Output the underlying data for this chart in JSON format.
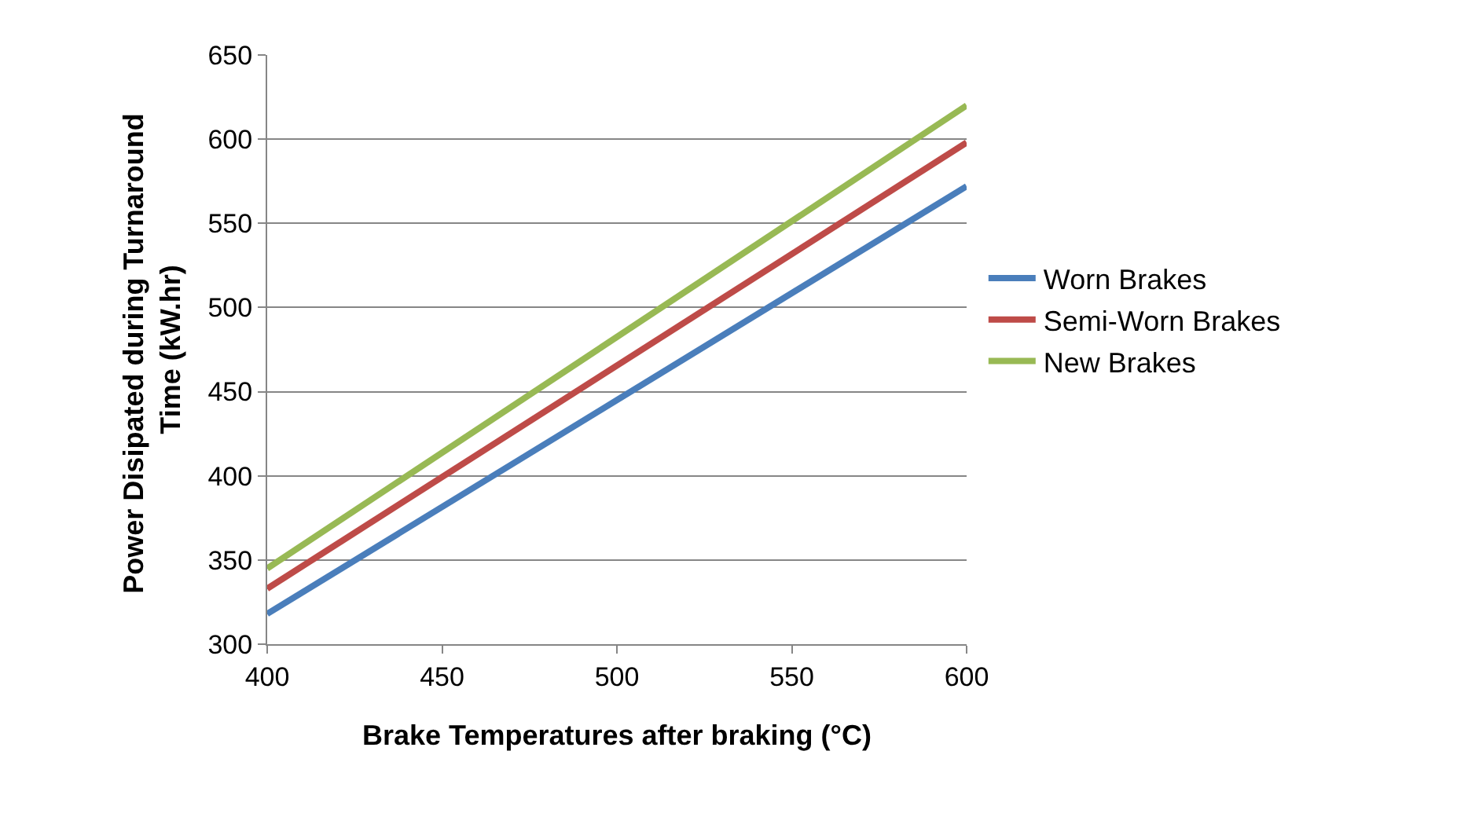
{
  "chart_data": {
    "type": "line",
    "xlabel": "Brake Temperatures after braking (°C)",
    "ylabel": "Power Disipated during Turnaround Time (kW.hr)",
    "x": [
      400,
      600
    ],
    "series": [
      {
        "name": "Worn Brakes",
        "color": "#4a7ebb",
        "values": [
          318,
          572
        ]
      },
      {
        "name": "Semi-Worn Brakes",
        "color": "#be4b48",
        "values": [
          333,
          598
        ]
      },
      {
        "name": "New Brakes",
        "color": "#98b954",
        "values": [
          345,
          620
        ]
      }
    ],
    "xlim": [
      400,
      600
    ],
    "xticks": [
      400,
      450,
      500,
      550,
      600
    ],
    "ylim": [
      300,
      650
    ],
    "yticks": [
      300,
      350,
      400,
      450,
      500,
      550,
      600,
      650
    ],
    "grid": "y",
    "legend": "right",
    "marker": "none",
    "line_style": "solid"
  }
}
